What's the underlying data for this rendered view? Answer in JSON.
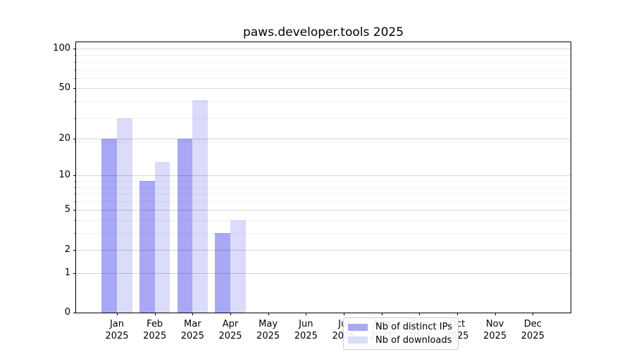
{
  "chart_data": {
    "type": "bar",
    "title": "paws.developer.tools 2025",
    "categories": [
      "Jan",
      "Feb",
      "Mar",
      "Apr",
      "May",
      "Jun",
      "Jul",
      "Aug",
      "Sep",
      "Oct",
      "Nov",
      "Dec"
    ],
    "x_tick_year": "2025",
    "series": [
      {
        "name": "Nb of distinct IPs",
        "color": "#a8a8f4",
        "values": [
          20,
          9,
          20,
          3,
          0,
          0,
          0,
          0,
          0,
          0,
          0,
          0
        ]
      },
      {
        "name": "Nb of downloads",
        "color": "#dbdbfa",
        "values": [
          29,
          13,
          40,
          4,
          0,
          0,
          0,
          0,
          0,
          0,
          0,
          0
        ]
      }
    ],
    "y_scale": "log1p",
    "y_ticks": [
      0,
      1,
      2,
      5,
      10,
      20,
      50,
      100
    ],
    "ylim": [
      0,
      112
    ],
    "grid": true,
    "legend_position": "lower-center"
  },
  "colors": {
    "axis": "#000000",
    "grid_major": "rgba(0,0,0,0.16)",
    "grid_minor": "rgba(0,0,0,0.055)",
    "legend_border": "#cccccc",
    "text": "#000000"
  }
}
